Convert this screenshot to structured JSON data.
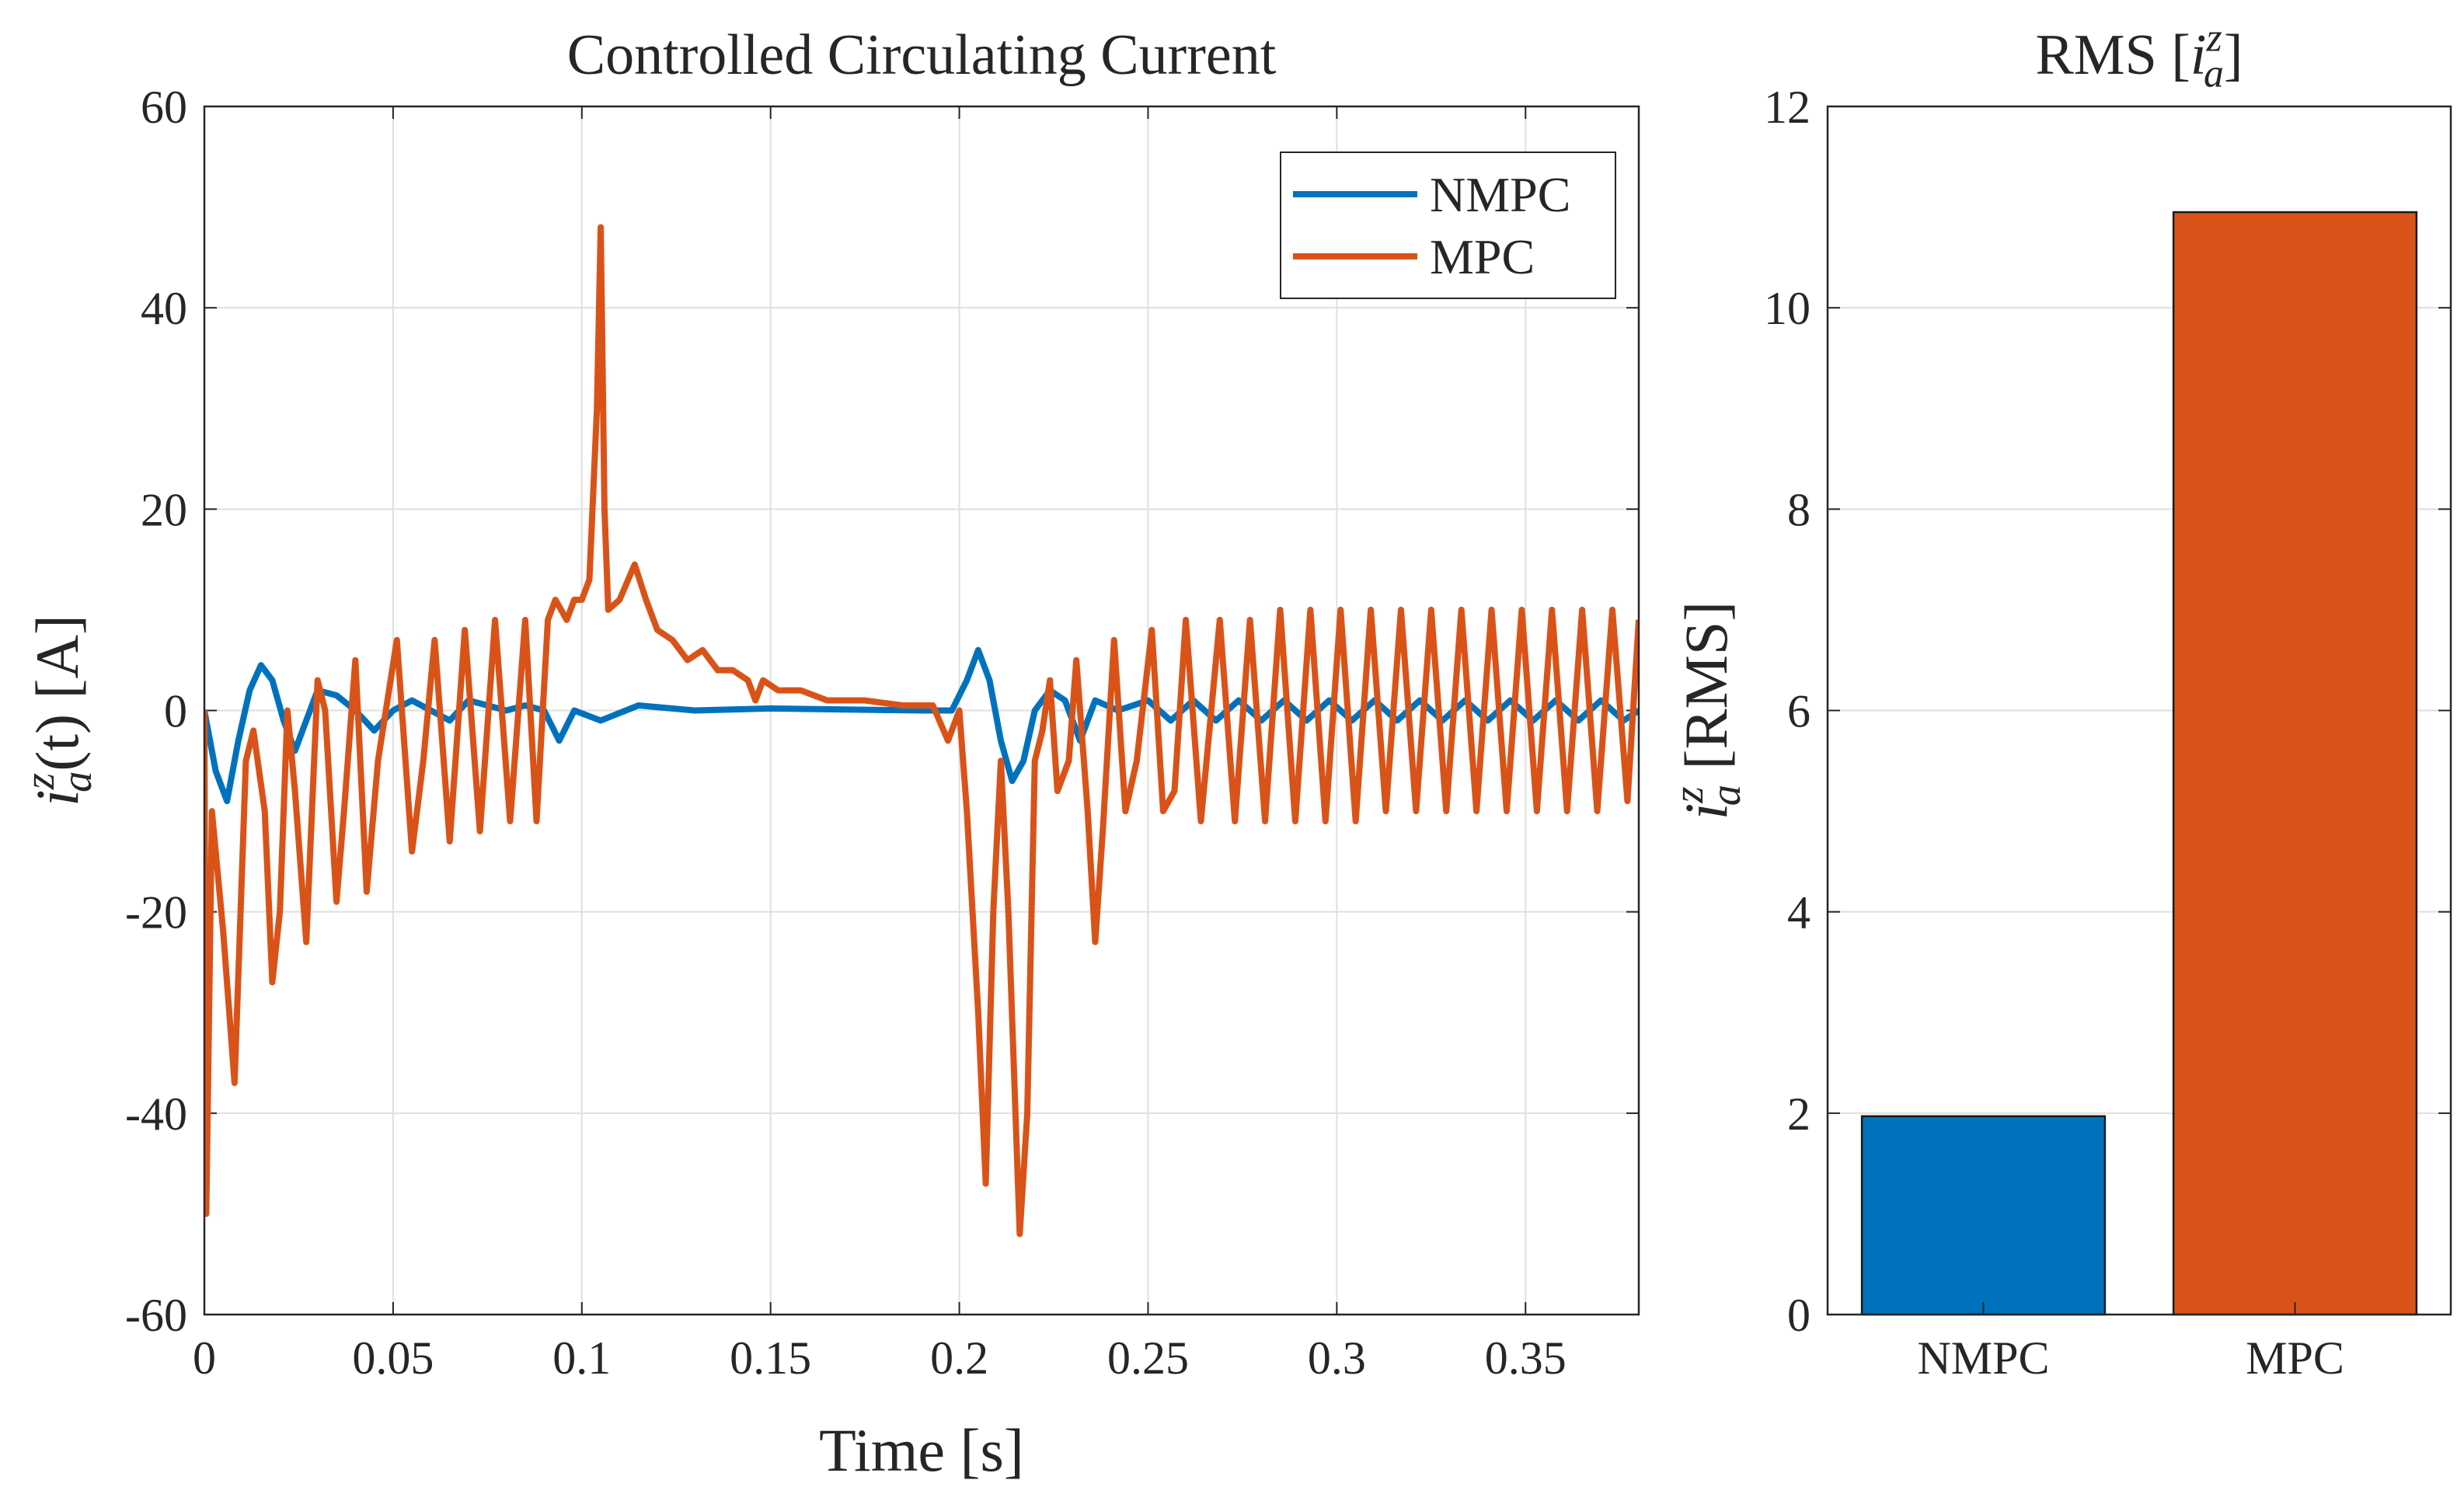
{
  "chart_data": [
    {
      "type": "line",
      "title": "Controlled Circulating Current",
      "x_label": "Time [s]",
      "y_label": {
        "var": "i",
        "sup": "z",
        "sub": "a",
        "text": "(t) [A]"
      },
      "xlim": [
        0,
        0.38
      ],
      "xticks": [
        0,
        0.05,
        0.1,
        0.15,
        0.2,
        0.25,
        0.3,
        0.35
      ],
      "ylim": [
        -60,
        60
      ],
      "yticks": [
        -60,
        -40,
        -20,
        0,
        20,
        40,
        60
      ],
      "grid": true,
      "legend": "upper right",
      "series": [
        {
          "name": "NMPC",
          "color": "#0072bd",
          "x": [
            0,
            0.003,
            0.006,
            0.009,
            0.012,
            0.015,
            0.018,
            0.021,
            0.024,
            0.027,
            0.03,
            0.035,
            0.04,
            0.045,
            0.05,
            0.055,
            0.06,
            0.065,
            0.07,
            0.08,
            0.085,
            0.09,
            0.094,
            0.098,
            0.105,
            0.115,
            0.13,
            0.15,
            0.19,
            0.198,
            0.202,
            0.205,
            0.208,
            0.211,
            0.214,
            0.217,
            0.22,
            0.224,
            0.228,
            0.232,
            0.236,
            0.242,
            0.25,
            0.256,
            0.262,
            0.268,
            0.274,
            0.28,
            0.286,
            0.292,
            0.298,
            0.304,
            0.31,
            0.316,
            0.322,
            0.328,
            0.334,
            0.34,
            0.346,
            0.352,
            0.358,
            0.364,
            0.37,
            0.376,
            0.38
          ],
          "values": [
            0,
            -6,
            -9,
            -3,
            2,
            4.5,
            3,
            -1,
            -4,
            -1,
            2,
            1.5,
            0,
            -2,
            0,
            1,
            0,
            -1,
            1,
            0,
            0.5,
            0,
            -3,
            0,
            -1,
            0.5,
            0,
            0.2,
            0,
            0,
            3,
            6,
            3,
            -3,
            -7,
            -5,
            0,
            2,
            1,
            -3,
            1,
            0,
            1,
            -1,
            1,
            -1,
            1,
            -1,
            1,
            -1,
            1,
            -1,
            1,
            -1,
            1,
            -1,
            1,
            -1,
            1,
            -1,
            1,
            -1,
            1,
            -1,
            0
          ]
        },
        {
          "name": "MPC",
          "color": "#d95319",
          "x": [
            0,
            0.0005,
            0.002,
            0.005,
            0.008,
            0.011,
            0.013,
            0.016,
            0.018,
            0.02,
            0.022,
            0.024,
            0.027,
            0.03,
            0.032,
            0.035,
            0.037,
            0.04,
            0.043,
            0.046,
            0.051,
            0.055,
            0.058,
            0.061,
            0.065,
            0.069,
            0.073,
            0.077,
            0.081,
            0.085,
            0.088,
            0.091,
            0.093,
            0.096,
            0.098,
            0.1,
            0.102,
            0.104,
            0.105,
            0.106,
            0.107,
            0.11,
            0.114,
            0.117,
            0.12,
            0.124,
            0.128,
            0.132,
            0.136,
            0.14,
            0.144,
            0.146,
            0.148,
            0.152,
            0.158,
            0.165,
            0.175,
            0.185,
            0.193,
            0.197,
            0.2,
            0.202,
            0.205,
            0.207,
            0.209,
            0.211,
            0.213,
            0.216,
            0.218,
            0.22,
            0.222,
            0.224,
            0.226,
            0.229,
            0.231,
            0.234,
            0.236,
            0.238,
            0.241,
            0.244,
            0.247,
            0.251,
            0.254,
            0.257,
            0.26,
            0.264,
            0.269,
            0.273,
            0.277,
            0.281,
            0.285,
            0.289,
            0.293,
            0.297,
            0.301,
            0.305,
            0.309,
            0.313,
            0.317,
            0.321,
            0.325,
            0.329,
            0.333,
            0.337,
            0.341,
            0.345,
            0.349,
            0.353,
            0.357,
            0.361,
            0.365,
            0.369,
            0.373,
            0.377,
            0.38
          ],
          "values": [
            0,
            -50,
            -10,
            -22,
            -37,
            -5,
            -2,
            -10,
            -27,
            -20,
            0,
            -8,
            -23,
            3,
            0,
            -19,
            -10,
            5,
            -18,
            -5,
            7,
            -14,
            -5,
            7,
            -13,
            8,
            -12,
            9,
            -11,
            9,
            -11,
            9,
            11,
            9,
            11,
            11,
            13,
            30,
            48,
            20,
            10,
            11,
            14.5,
            11,
            8,
            7,
            5,
            6,
            4,
            4,
            3,
            1,
            3,
            2,
            2,
            1,
            1,
            0.5,
            0.5,
            -3,
            0,
            -10,
            -30,
            -47,
            -20,
            -5,
            -20,
            -52,
            -40,
            -5,
            -2,
            3,
            -8,
            -5,
            5,
            -10,
            -23,
            -12,
            7,
            -10,
            -5,
            8,
            -10,
            -8,
            9,
            -11,
            9,
            -11,
            9,
            -11,
            10,
            -11,
            10,
            -11,
            10,
            -11,
            10,
            -10,
            10,
            -10,
            10,
            -10,
            10,
            -10,
            10,
            -10,
            10,
            -10,
            10,
            -10,
            10,
            -10,
            10,
            -9,
            9
          ]
        }
      ]
    },
    {
      "type": "bar",
      "title": {
        "prefix": "RMS [",
        "var": "i",
        "sup": "z",
        "sub": "a",
        "suffix": "]"
      },
      "y_label": {
        "var": "i",
        "sup": "z",
        "sub": "a",
        "text": " [RMS]"
      },
      "categories": [
        "NMPC",
        "MPC"
      ],
      "values": [
        1.97,
        10.95
      ],
      "colors": [
        "#0072bd",
        "#d95319"
      ],
      "ylim": [
        0,
        12
      ],
      "yticks": [
        0,
        2,
        4,
        6,
        8,
        10,
        12
      ],
      "grid": true
    }
  ]
}
